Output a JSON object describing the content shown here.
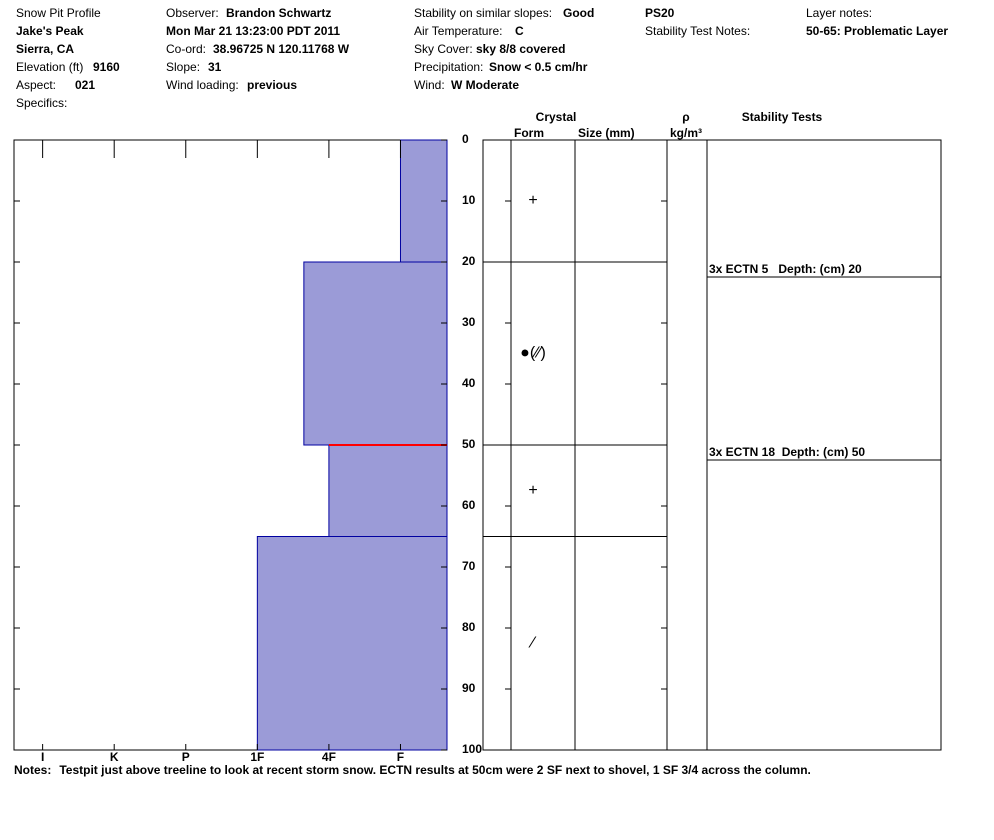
{
  "header": {
    "title": "Snow Pit Profile",
    "location": "Jake's Peak",
    "region": "Sierra, CA",
    "elevation": {
      "label": "Elevation (ft)",
      "value": 9160
    },
    "aspect": {
      "label": "Aspect:",
      "value": "021"
    },
    "specifics": {
      "label": "Specifics:"
    },
    "observer": {
      "label": "Observer:",
      "value": "Brandon Schwartz"
    },
    "date": "Mon Mar 21 13:23:00 PDT 2011",
    "coord": {
      "label": "Co-ord:",
      "value": "38.96725 N 120.11768 W"
    },
    "slope": {
      "label": "Slope:",
      "value": 31
    },
    "wind_loading": {
      "label": "Wind loading:",
      "value": "previous"
    },
    "stability": {
      "label": "Stability on similar slopes:",
      "value": "Good"
    },
    "air_temperature": {
      "label": "Air Temperature:",
      "value": "C"
    },
    "sky_cover": {
      "label": "Sky Cover:",
      "value": "sky 8/8 covered"
    },
    "precipitation": {
      "label": "Precipitation:",
      "value": "Snow < 0.5 cm/hr"
    },
    "wind": {
      "label": "Wind:",
      "value": "W Moderate"
    },
    "pit_id": "PS20",
    "stability_test_notes": {
      "label": "Stability Test Notes:"
    },
    "layer_notes": {
      "label": "Layer notes:",
      "value": "50-65: Problematic Layer"
    }
  },
  "chart_data": {
    "type": "snow-profile",
    "ylim": [
      0,
      100
    ],
    "yticks": [
      0,
      10,
      20,
      30,
      40,
      50,
      60,
      70,
      80,
      90,
      100
    ],
    "xlim": [
      6.4,
      0.35
    ],
    "xticks": [
      {
        "value": 6,
        "label": "I"
      },
      {
        "value": 5,
        "label": "K"
      },
      {
        "value": 4,
        "label": "P"
      },
      {
        "value": 3,
        "label": "1F"
      },
      {
        "value": 2,
        "label": "4F"
      },
      {
        "value": 1,
        "label": "F"
      }
    ],
    "color": "#9b9bd7",
    "edge_color": "#0000a0",
    "layers": [
      {
        "top": 0,
        "bottom": 20,
        "hardness": 1,
        "form": "+"
      },
      {
        "top": 20,
        "bottom": 50,
        "hardness": 2.35,
        "form": "●(⁄⁄)"
      },
      {
        "top": 50,
        "bottom": 65,
        "hardness": 2,
        "form": "+"
      },
      {
        "top": 65,
        "bottom": 100,
        "hardness": 3,
        "form": "⁄"
      }
    ],
    "critical_interface": {
      "depth": 50,
      "color": "#ff0000"
    },
    "table_headers": {
      "crystal": "Crystal",
      "form": "Form",
      "size": "Size (mm)",
      "density": "ρ",
      "density_unit": "kg/m³",
      "stability_tests": "Stability Tests"
    },
    "stability_tests": [
      {
        "label": "3x ECTN 5   Depth: (cm) 20",
        "depth": 20
      },
      {
        "label": "3x ECTN 18  Depth: (cm) 50",
        "depth": 50
      }
    ]
  },
  "notes": {
    "label": "Notes:",
    "text": "Testpit just above treeline to look at recent storm snow. ECTN results at 50cm were 2 SF next to shovel, 1 SF 3/4 across the column."
  }
}
